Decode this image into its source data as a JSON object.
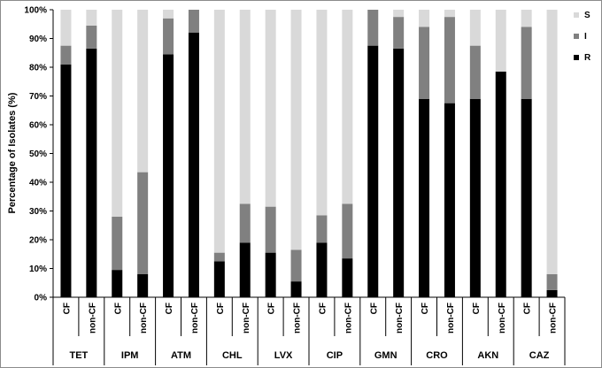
{
  "chart_data": {
    "type": "bar",
    "stacked": true,
    "ylabel": "Percentage of Isolates (%)",
    "ylim": [
      0,
      100
    ],
    "yticks": [
      "0%",
      "10%",
      "20%",
      "30%",
      "40%",
      "50%",
      "60%",
      "70%",
      "80%",
      "90%",
      "100%"
    ],
    "groups": [
      "TET",
      "IPM",
      "ATM",
      "CHL",
      "LVX",
      "CIP",
      "GMN",
      "CRO",
      "AKN",
      "CAZ"
    ],
    "subcategories": [
      "CF",
      "non-CF"
    ],
    "categories": [
      "CF",
      "non-CF",
      "CF",
      "non-CF",
      "CF",
      "non-CF",
      "CF",
      "non-CF",
      "CF",
      "non-CF",
      "CF",
      "non-CF",
      "CF",
      "non-CF",
      "CF",
      "non-CF",
      "CF",
      "non-CF",
      "CF",
      "non-CF"
    ],
    "series": [
      {
        "name": "R",
        "color": "#000000",
        "values": [
          81,
          86.5,
          9.5,
          8,
          84.5,
          92,
          12.5,
          19,
          15.5,
          5.5,
          19,
          13.5,
          87.5,
          86.5,
          69,
          67.5,
          69,
          78.5,
          69,
          2.5
        ]
      },
      {
        "name": "I",
        "color": "#808080",
        "values": [
          6.5,
          8,
          18.5,
          35.5,
          12.5,
          8,
          3,
          13.5,
          16,
          11,
          9.5,
          19,
          12.5,
          11,
          25,
          30,
          18.5,
          0,
          25,
          5.5
        ]
      },
      {
        "name": "S",
        "color": "#d9d9d9",
        "values": [
          12.5,
          5.5,
          72,
          56.5,
          3,
          0,
          84.5,
          67.5,
          68.5,
          83.5,
          71.5,
          67.5,
          0,
          2.5,
          6,
          2.5,
          12.5,
          21.5,
          6,
          92
        ]
      }
    ],
    "legend": {
      "position": "right",
      "order": [
        "S",
        "I",
        "R"
      ]
    },
    "grid": false
  }
}
